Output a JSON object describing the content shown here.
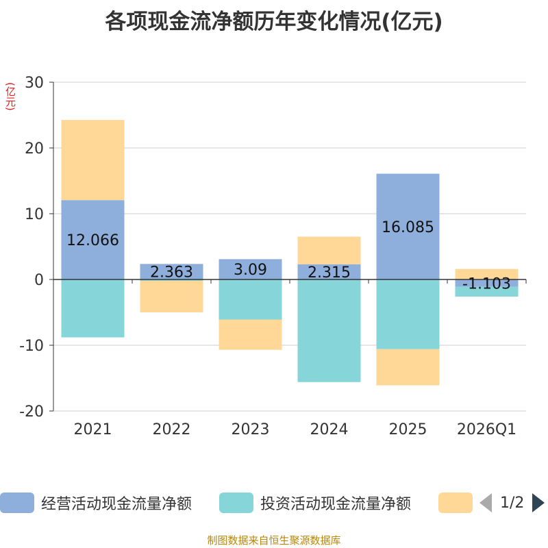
{
  "title": "各项现金流净额历年变化情况(亿元)",
  "unit": "(亿元)",
  "colors": {
    "operating": "#8eaedb",
    "investing": "#86d5d9",
    "financing": "#ffd898",
    "unit": "#e02020",
    "source": "#b8860b"
  },
  "legend": {
    "items": [
      {
        "label": "经营活动现金流量净额",
        "color": "#8eaedb"
      },
      {
        "label": "投资活动现金流量净额",
        "color": "#86d5d9"
      },
      {
        "label": "",
        "color": "#ffd898"
      }
    ],
    "page": "1/2"
  },
  "source": "制图数据来自恒生聚源数据库",
  "chart_data": {
    "type": "bar",
    "stacked": true,
    "title": "各项现金流净额历年变化情况(亿元)",
    "ylabel": "(亿元)",
    "ylim": [
      -20,
      30
    ],
    "yticks": [
      -20,
      -10,
      0,
      10,
      20,
      30
    ],
    "categories": [
      "2021",
      "2022",
      "2023",
      "2024",
      "2025",
      "2026Q1"
    ],
    "series": [
      {
        "name": "经营活动现金流量净额",
        "values": [
          12.066,
          2.363,
          3.09,
          2.315,
          16.085,
          -1.103
        ],
        "show_labels": true
      },
      {
        "name": "投资活动现金流量净额",
        "values": [
          -8.8,
          -0.2,
          -6.1,
          -15.6,
          -10.6,
          -1.5
        ],
        "show_labels": false
      },
      {
        "name": "",
        "values": [
          12.2,
          -4.8,
          -4.6,
          4.2,
          -5.5,
          1.6
        ],
        "show_labels": false
      }
    ],
    "labels": [
      "12.066",
      "2.363",
      "3.09",
      "2.315",
      "16.085",
      "-1.103"
    ],
    "legend_position": "bottom"
  }
}
